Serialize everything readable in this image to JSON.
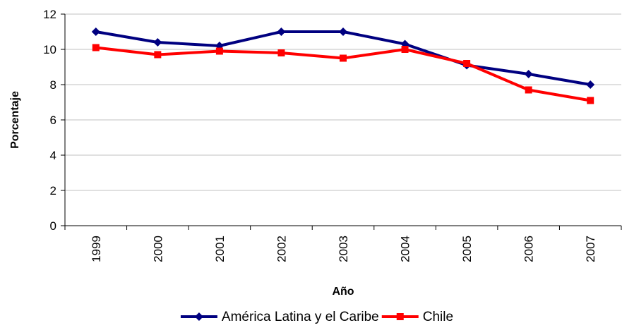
{
  "chart_data": {
    "type": "line",
    "title": "",
    "xlabel": "Año",
    "ylabel": "Porcentaje",
    "categories": [
      "1999",
      "2000",
      "2001",
      "2002",
      "2003",
      "2004",
      "2005",
      "2006",
      "2007"
    ],
    "ylim": [
      0,
      12
    ],
    "yticks": [
      "0",
      "2",
      "4",
      "6",
      "8",
      "10",
      "12"
    ],
    "grid": true,
    "legend_position": "bottom",
    "series": [
      {
        "name": "América Latina y el Caribe",
        "color": "#000080",
        "marker": "diamond",
        "values": [
          11.0,
          10.4,
          10.2,
          11.0,
          11.0,
          10.3,
          9.1,
          8.6,
          8.0
        ]
      },
      {
        "name": "Chile",
        "color": "#ff0000",
        "marker": "square",
        "values": [
          10.1,
          9.7,
          9.9,
          9.8,
          9.5,
          10.0,
          9.2,
          7.7,
          7.1
        ]
      }
    ]
  }
}
